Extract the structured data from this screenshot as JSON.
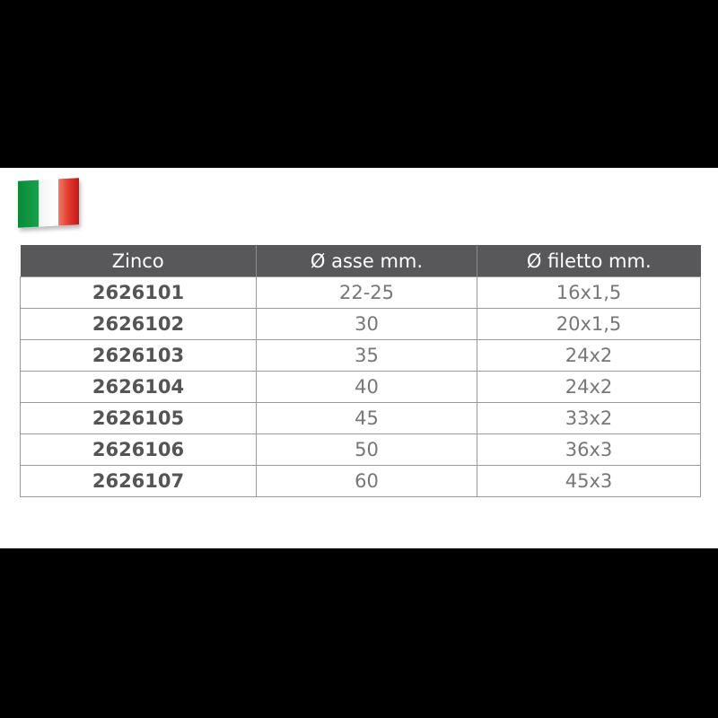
{
  "flag": {
    "icon": "italy-flag-icon",
    "colors": [
      "#0a8a3a",
      "#ffffff",
      "#e03a2c"
    ]
  },
  "table": {
    "header_color": "#58585a",
    "columns": [
      "Zinco",
      "Ø asse mm.",
      "Ø filetto mm."
    ],
    "rows": [
      [
        "2626101",
        "22-25",
        "16x1,5"
      ],
      [
        "2626102",
        "30",
        "20x1,5"
      ],
      [
        "2626103",
        "35",
        "24x2"
      ],
      [
        "2626104",
        "40",
        "24x2"
      ],
      [
        "2626105",
        "45",
        "33x2"
      ],
      [
        "2626106",
        "50",
        "36x3"
      ],
      [
        "2626107",
        "60",
        "45x3"
      ]
    ]
  }
}
